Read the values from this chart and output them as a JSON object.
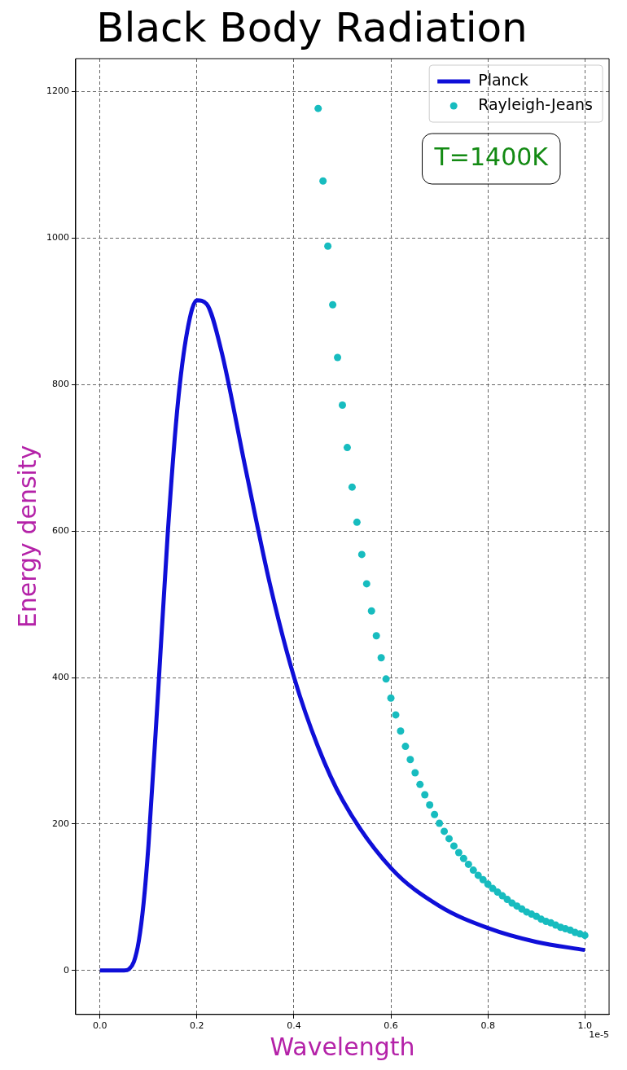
{
  "chart_data": {
    "type": "line",
    "title": "Black Body Radiation",
    "xlabel": "Wavelength",
    "ylabel": "Energy density",
    "annotations": [
      "T=1400K",
      "1e-5"
    ],
    "series": [
      {
        "name": "Planck",
        "marker": "none",
        "color": "#0f0fd8",
        "x": [
          0,
          0.03,
          0.05,
          0.06,
          0.07,
          0.08,
          0.09,
          0.1,
          0.12,
          0.14,
          0.16,
          0.18,
          0.2,
          0.22,
          0.25,
          0.3,
          0.35,
          0.4,
          0.45,
          0.5,
          0.6,
          0.7,
          0.8,
          0.9,
          1.0
        ],
        "values": [
          0,
          0,
          0,
          2,
          12,
          40,
          92,
          171,
          381,
          599,
          770,
          873,
          915,
          910,
          847,
          686,
          529,
          401,
          305,
          233,
          140,
          88,
          58,
          39,
          28
        ]
      },
      {
        "name": "Rayleigh-Jeans",
        "type": "scatter",
        "marker": "circle",
        "color": "#17bcbf",
        "x": [
          0.45,
          0.46,
          0.47,
          0.48,
          0.49,
          0.5,
          0.51,
          0.52,
          0.53,
          0.54,
          0.55,
          0.56,
          0.57,
          0.58,
          0.59,
          0.6,
          0.61,
          0.62,
          0.63,
          0.64,
          0.65,
          0.66,
          0.67,
          0.68,
          0.69,
          0.7,
          0.71,
          0.72,
          0.73,
          0.74,
          0.75,
          0.76,
          0.77,
          0.78,
          0.79,
          0.8,
          0.81,
          0.82,
          0.83,
          0.84,
          0.85,
          0.86,
          0.87,
          0.88,
          0.89,
          0.9,
          0.91,
          0.92,
          0.93,
          0.94,
          0.95,
          0.96,
          0.97,
          0.98,
          0.99,
          1.0
        ],
        "values": [
          1177,
          1078,
          989,
          909,
          837,
          772,
          714,
          660,
          612,
          568,
          528,
          491,
          457,
          427,
          398,
          372,
          349,
          327,
          306,
          288,
          270,
          254,
          240,
          226,
          213,
          201,
          190,
          180,
          170,
          161,
          153,
          145,
          137,
          130,
          124,
          118,
          112,
          107,
          102,
          97,
          92,
          88,
          84,
          80,
          77,
          74,
          70,
          67,
          65,
          62,
          59,
          57,
          55,
          52,
          50,
          48
        ]
      }
    ],
    "xlim": [
      -0.05,
      1.05
    ],
    "xticks": [
      {
        "value": 0,
        "label": "0.0"
      },
      0.2,
      0.4,
      0.6,
      0.8,
      {
        "value": 1,
        "label": "1.0"
      }
    ],
    "ylim": [
      -60,
      1245
    ],
    "yticks": [
      0,
      200,
      400,
      600,
      800,
      1000,
      1200
    ],
    "grid": true,
    "legend": "top right"
  }
}
